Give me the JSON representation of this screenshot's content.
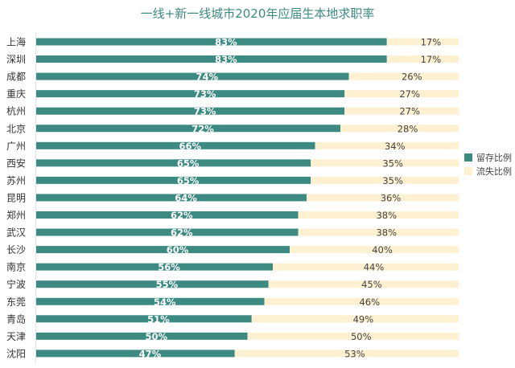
{
  "chart_data": {
    "type": "bar",
    "orientation": "horizontal",
    "stacked": true,
    "title": "一线+新一线城市2020年应届生本地求职率",
    "xlabel": "",
    "ylabel": "",
    "xlim": [
      0,
      100
    ],
    "grid": false,
    "legend_position": "right",
    "categories": [
      "上海",
      "深圳",
      "成都",
      "重庆",
      "杭州",
      "北京",
      "广州",
      "西安",
      "苏州",
      "昆明",
      "郑州",
      "武汉",
      "长沙",
      "南京",
      "宁波",
      "东莞",
      "青岛",
      "天津",
      "沈阳"
    ],
    "series": [
      {
        "name": "留存比例",
        "color": "#3d8a82",
        "values": [
          83,
          83,
          74,
          73,
          73,
          72,
          66,
          65,
          65,
          64,
          62,
          62,
          60,
          56,
          55,
          54,
          51,
          50,
          47
        ]
      },
      {
        "name": "流失比例",
        "color": "#fdf1d2",
        "values": [
          17,
          17,
          26,
          27,
          27,
          28,
          34,
          35,
          35,
          36,
          38,
          38,
          40,
          44,
          45,
          46,
          49,
          50,
          53
        ]
      }
    ],
    "value_suffix": "%"
  }
}
